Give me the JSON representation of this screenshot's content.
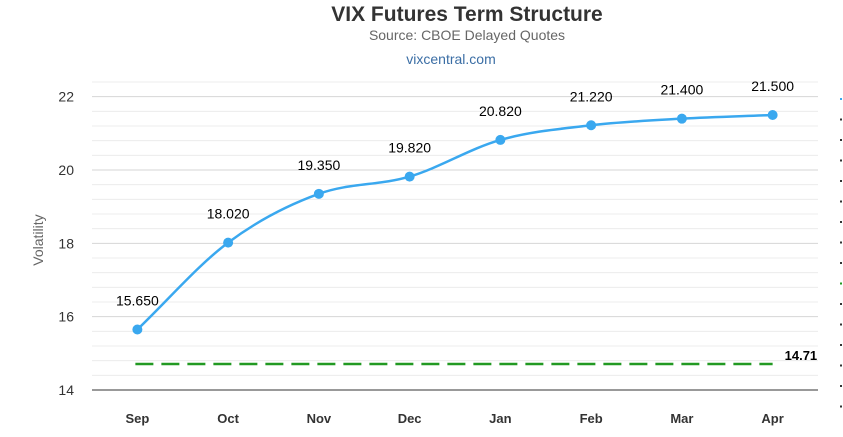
{
  "header": {
    "title": "VIX Futures Term Structure",
    "subtitle": "Source: CBOE Delayed Quotes",
    "link": "vixcentral.com"
  },
  "chart_data": {
    "type": "line",
    "title": "VIX Futures Term Structure",
    "subtitle": "Source: CBOE Delayed Quotes",
    "xlabel": "",
    "ylabel": "Volatility",
    "categories": [
      "Sep",
      "Oct",
      "Nov",
      "Dec",
      "Jan",
      "Feb",
      "Mar",
      "Apr"
    ],
    "ylim": [
      14,
      22.4
    ],
    "yticks": [
      14,
      16,
      18,
      20,
      22
    ],
    "grid": true,
    "series": [
      {
        "values": [
          15.65,
          18.02,
          19.35,
          19.82,
          20.82,
          21.22,
          21.4,
          21.5
        ],
        "labels": [
          "15.650",
          "18.020",
          "19.350",
          "19.820",
          "20.820",
          "21.220",
          "21.400",
          "21.500"
        ],
        "color": "#3aa8ef"
      }
    ],
    "reference_line": {
      "value": 14.71,
      "label": "14.71",
      "color": "#229922",
      "style": "dashed"
    }
  }
}
